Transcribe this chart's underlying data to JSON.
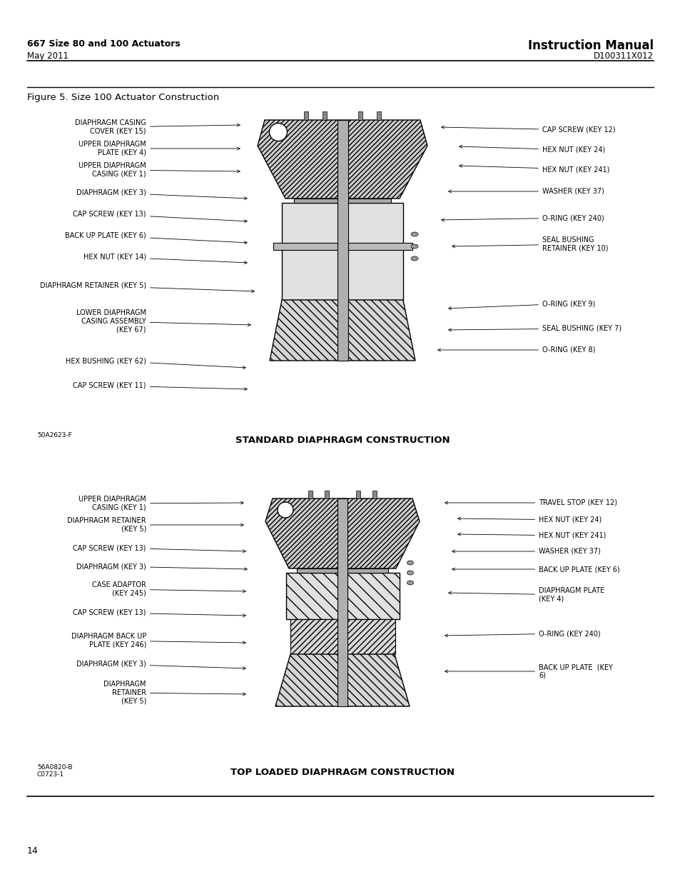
{
  "page_bg": "#ffffff",
  "header_left_bold": "667 Size 80 and 100 Actuators",
  "header_left_sub": "May 2011",
  "header_right_bold": "Instruction Manual",
  "header_right_sub": "D100311X012",
  "figure_title": "Figure 5. Size 100 Actuator Construction",
  "diagram1_caption": "STANDARD DIAPHRAGM CONSTRUCTION",
  "diagram2_caption": "TOP LOADED DIAPHRAGM CONSTRUCTION",
  "diagram1_ref": "50A2623-F",
  "diagram2_ref": "56A0820-B\nC0723-1",
  "page_number": "14",
  "diagram1_left_labels": [
    "DIAPHRAGM CASING\nCOVER (KEY 15)",
    "UPPER DIAPHRAGM\nPLATE (KEY 4)",
    "UPPER DIAPHRAGM\nCASING (KEY 1)",
    "DIAPHRAGM (KEY 3)",
    "CAP SCREW (KEY 13)",
    "BACK UP PLATE (KEY 6)",
    "HEX NUT (KEY 14)",
    "DIAPHRAGM RETAINER (KEY 5)",
    "LOWER DIAPHRAGM\nCASING ASSEMBLY\n(KEY 67)",
    "HEX BUSHING (KEY 62)",
    "CAP SCREW (KEY 11)"
  ],
  "diagram1_right_labels": [
    "CAP SCREW (KEY 12)",
    "HEX NUT (KEY 24)",
    "HEX NUT (KEY 241)",
    "WASHER (KEY 37)",
    "O-RING (KEY 240)",
    "SEAL BUSHING\nRETAINER (KEY 10)",
    "O-RING (KEY 9)",
    "SEAL BUSHING (KEY 7)",
    "O-RING (KEY 8)"
  ],
  "diagram2_left_labels": [
    "UPPER DIAPHRAGM\nCASING (KEY 1)",
    "DIAPHRAGM RETAINER\n(KEY 5)",
    "CAP SCREW (KEY 13)",
    "DIAPHRAGM (KEY 3)",
    "CASE ADAPTOR\n(KEY 245)",
    "CAP SCREW (KEY 13)",
    "DIAPHRAGM BACK UP\nPLATE (KEY 246)",
    "DIAPHRAGM (KEY 3)",
    "DIAPHRAGM\nRETAINER\n(KEY 5)"
  ],
  "diagram2_right_labels": [
    "TRAVEL STOP (KEY 12)",
    "HEX NUT (KEY 24)",
    "HEX NUT (KEY 241)",
    "WASHER (KEY 37)",
    "BACK UP PLATE (KEY 6)",
    "DIAPHRAGM PLATE\n(KEY 4)",
    "O-RING (KEY 240)",
    "BACK UP PLATE  (KEY\n6)"
  ]
}
